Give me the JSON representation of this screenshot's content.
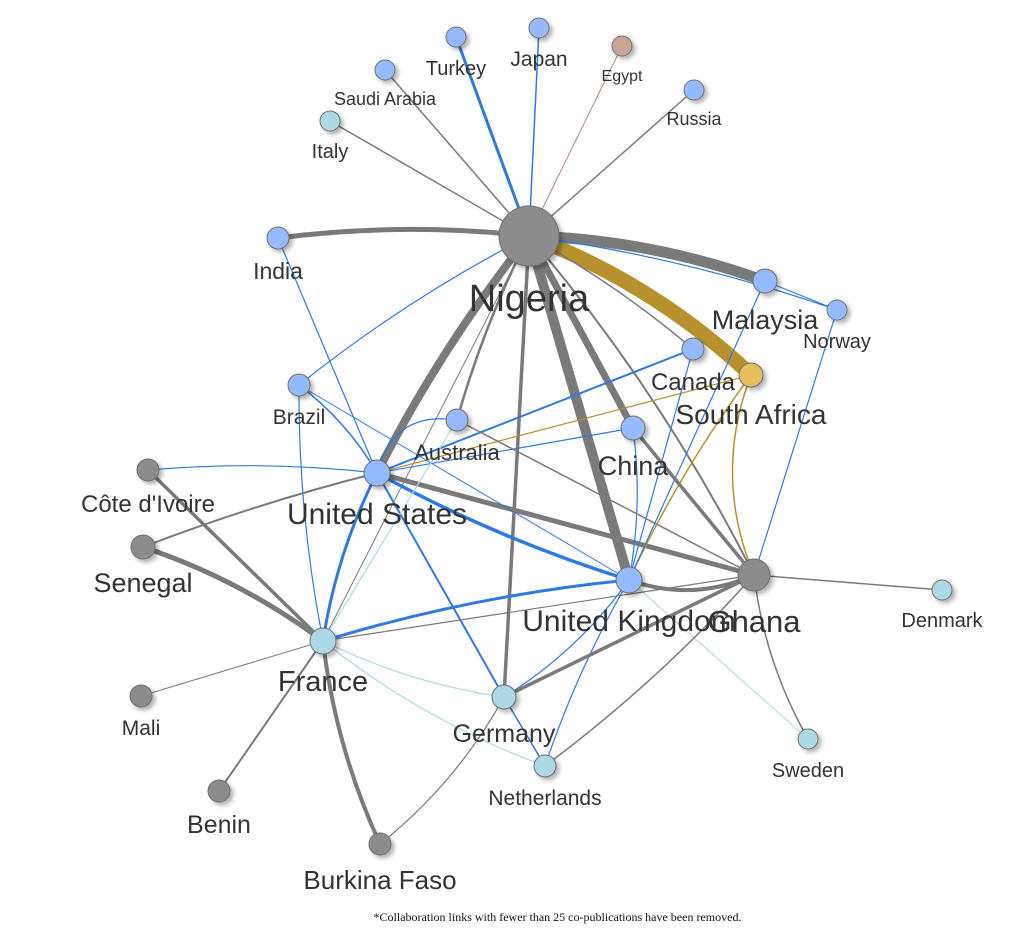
{
  "colors": {
    "grey": "#7a7a7a",
    "blue": "#2e7ae0",
    "lightblue": "#add8e6",
    "gold": "#b8912e",
    "brown": "#b08878",
    "node_grey": "#8c8c8c",
    "node_blue": "#94bbff",
    "node_lightblue": "#add8e6",
    "node_gold": "#e6bf5c",
    "node_brown": "#c9a597"
  },
  "nodes": [
    {
      "id": "nigeria",
      "label": "Nigeria",
      "color": "grey"
    },
    {
      "id": "ghana",
      "label": "Ghana",
      "color": "grey"
    },
    {
      "id": "south_africa",
      "label": "South Africa",
      "color": "gold"
    },
    {
      "id": "united_kingdom",
      "label": "United Kingdom",
      "color": "blue"
    },
    {
      "id": "united_states",
      "label": "United States",
      "color": "blue"
    },
    {
      "id": "malaysia",
      "label": "Malaysia",
      "color": "blue"
    },
    {
      "id": "china",
      "label": "China",
      "color": "blue"
    },
    {
      "id": "canada",
      "label": "Canada",
      "color": "blue"
    },
    {
      "id": "australia",
      "label": "Australia",
      "color": "blue"
    },
    {
      "id": "brazil",
      "label": "Brazil",
      "color": "blue"
    },
    {
      "id": "india",
      "label": "India",
      "color": "blue"
    },
    {
      "id": "norway",
      "label": "Norway",
      "color": "blue"
    },
    {
      "id": "turkey",
      "label": "Turkey",
      "color": "blue"
    },
    {
      "id": "japan",
      "label": "Japan",
      "color": "blue"
    },
    {
      "id": "saudi_arabia",
      "label": "Saudi Arabia",
      "color": "blue"
    },
    {
      "id": "russia",
      "label": "Russia",
      "color": "blue"
    },
    {
      "id": "egypt",
      "label": "Egypt",
      "color": "brown"
    },
    {
      "id": "italy",
      "label": "Italy",
      "color": "lightblue"
    },
    {
      "id": "france",
      "label": "France",
      "color": "lightblue"
    },
    {
      "id": "germany",
      "label": "Germany",
      "color": "lightblue"
    },
    {
      "id": "netherlands",
      "label": "Netherlands",
      "color": "lightblue"
    },
    {
      "id": "sweden",
      "label": "Sweden",
      "color": "lightblue"
    },
    {
      "id": "denmark",
      "label": "Denmark",
      "color": "lightblue"
    },
    {
      "id": "cote_divoire",
      "label": "Côte d'Ivoire",
      "color": "grey"
    },
    {
      "id": "senegal",
      "label": "Senegal",
      "color": "grey"
    },
    {
      "id": "mali",
      "label": "Mali",
      "color": "grey"
    },
    {
      "id": "benin",
      "label": "Benin",
      "color": "grey"
    },
    {
      "id": "burkina_faso",
      "label": "Burkina Faso",
      "color": "grey"
    }
  ],
  "edges": [
    {
      "source": "nigeria",
      "target": "south_africa",
      "color": "gold"
    },
    {
      "source": "nigeria",
      "target": "malaysia",
      "color": "grey"
    },
    {
      "source": "nigeria",
      "target": "united_kingdom",
      "color": "grey"
    },
    {
      "source": "nigeria",
      "target": "united_states",
      "color": "grey"
    },
    {
      "source": "nigeria",
      "target": "china",
      "color": "grey"
    },
    {
      "source": "nigeria",
      "target": "india",
      "color": "grey"
    },
    {
      "source": "nigeria",
      "target": "ghana",
      "color": "grey"
    },
    {
      "source": "nigeria",
      "target": "germany",
      "color": "grey"
    },
    {
      "source": "nigeria",
      "target": "australia",
      "color": "grey"
    },
    {
      "source": "nigeria",
      "target": "turkey",
      "color": "blue"
    },
    {
      "source": "nigeria",
      "target": "japan",
      "color": "blue"
    },
    {
      "source": "nigeria",
      "target": "saudi_arabia",
      "color": "grey"
    },
    {
      "source": "nigeria",
      "target": "egypt",
      "color": "brown"
    },
    {
      "source": "nigeria",
      "target": "russia",
      "color": "grey"
    },
    {
      "source": "nigeria",
      "target": "italy",
      "color": "grey"
    },
    {
      "source": "nigeria",
      "target": "canada",
      "color": "grey"
    },
    {
      "source": "nigeria",
      "target": "norway",
      "color": "blue"
    },
    {
      "source": "nigeria",
      "target": "brazil",
      "color": "blue"
    },
    {
      "source": "nigeria",
      "target": "france",
      "color": "grey"
    },
    {
      "source": "united_states",
      "target": "united_kingdom",
      "color": "blue"
    },
    {
      "source": "united_states",
      "target": "ghana",
      "color": "grey"
    },
    {
      "source": "united_states",
      "target": "france",
      "color": "blue"
    },
    {
      "source": "united_states",
      "target": "germany",
      "color": "blue"
    },
    {
      "source": "united_states",
      "target": "canada",
      "color": "blue"
    },
    {
      "source": "united_states",
      "target": "china",
      "color": "blue"
    },
    {
      "source": "united_states",
      "target": "brazil",
      "color": "blue"
    },
    {
      "source": "united_states",
      "target": "india",
      "color": "blue"
    },
    {
      "source": "united_states",
      "target": "cote_divoire",
      "color": "blue"
    },
    {
      "source": "united_states",
      "target": "senegal",
      "color": "grey"
    },
    {
      "source": "united_states",
      "target": "australia",
      "color": "blue"
    },
    {
      "source": "united_states",
      "target": "south_africa",
      "color": "gold"
    },
    {
      "source": "united_kingdom",
      "target": "ghana",
      "color": "grey"
    },
    {
      "source": "united_kingdom",
      "target": "france",
      "color": "blue"
    },
    {
      "source": "united_kingdom",
      "target": "germany",
      "color": "blue"
    },
    {
      "source": "united_kingdom",
      "target": "netherlands",
      "color": "blue"
    },
    {
      "source": "united_kingdom",
      "target": "south_africa",
      "color": "gold"
    },
    {
      "source": "united_kingdom",
      "target": "malaysia",
      "color": "blue"
    },
    {
      "source": "united_kingdom",
      "target": "china",
      "color": "blue"
    },
    {
      "source": "united_kingdom",
      "target": "canada",
      "color": "blue"
    },
    {
      "source": "united_kingdom",
      "target": "sweden",
      "color": "lightblue"
    },
    {
      "source": "united_kingdom",
      "target": "brazil",
      "color": "blue"
    },
    {
      "source": "ghana",
      "target": "germany",
      "color": "grey"
    },
    {
      "source": "ghana",
      "target": "netherlands",
      "color": "grey"
    },
    {
      "source": "ghana",
      "target": "south_africa",
      "color": "gold"
    },
    {
      "source": "ghana",
      "target": "china",
      "color": "grey"
    },
    {
      "source": "ghana",
      "target": "sweden",
      "color": "grey"
    },
    {
      "source": "ghana",
      "target": "denmark",
      "color": "grey"
    },
    {
      "source": "ghana",
      "target": "france",
      "color": "grey"
    },
    {
      "source": "ghana",
      "target": "norway",
      "color": "blue"
    },
    {
      "source": "ghana",
      "target": "australia",
      "color": "grey"
    },
    {
      "source": "france",
      "target": "senegal",
      "color": "grey"
    },
    {
      "source": "france",
      "target": "cote_divoire",
      "color": "grey"
    },
    {
      "source": "france",
      "target": "burkina_faso",
      "color": "grey"
    },
    {
      "source": "france",
      "target": "benin",
      "color": "grey"
    },
    {
      "source": "france",
      "target": "mali",
      "color": "grey"
    },
    {
      "source": "france",
      "target": "germany",
      "color": "lightblue"
    },
    {
      "source": "france",
      "target": "netherlands",
      "color": "lightblue"
    },
    {
      "source": "france",
      "target": "brazil",
      "color": "blue"
    },
    {
      "source": "france",
      "target": "australia",
      "color": "lightblue"
    },
    {
      "source": "germany",
      "target": "netherlands",
      "color": "blue"
    },
    {
      "source": "germany",
      "target": "burkina_faso",
      "color": "grey"
    },
    {
      "source": "malaysia",
      "target": "norway",
      "color": "blue"
    }
  ],
  "footnote": "*Collaboration links with fewer than 25 co-publications have been removed."
}
